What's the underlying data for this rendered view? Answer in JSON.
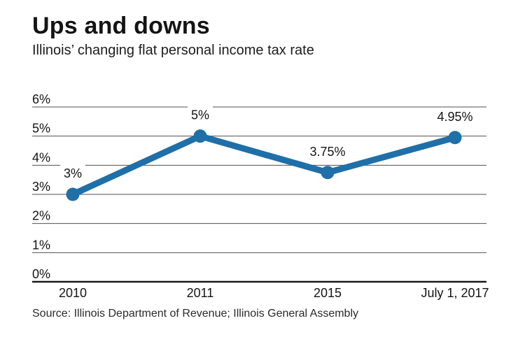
{
  "header": {
    "title": "Ups and downs",
    "subtitle": "Illinois’ changing flat personal income tax rate"
  },
  "chart_data": {
    "type": "line",
    "title": "Ups and downs",
    "subtitle": "Illinois’ changing flat personal income tax rate",
    "categories": [
      "2010",
      "2011",
      "2015",
      "July 1, 2017"
    ],
    "values": [
      3,
      5,
      3.75,
      4.95
    ],
    "point_labels": [
      "3%",
      "5%",
      "3.75%",
      "4.95%"
    ],
    "xlabel": "",
    "ylabel": "",
    "ylim": [
      0,
      6
    ],
    "yticks": [
      0,
      1,
      2,
      3,
      4,
      5,
      6
    ],
    "ytick_labels": [
      "0%",
      "1%",
      "2%",
      "3%",
      "4%",
      "5%",
      "6%"
    ],
    "grid": "horizontal",
    "legend": "none",
    "line_color": "#1f6fa8",
    "gridline_color": "#4f4f4f",
    "axis_color": "#1a1a1a",
    "text_color": "#141414"
  },
  "source": {
    "text": "Source: Illinois Department of Revenue; Illinois General Assembly"
  }
}
